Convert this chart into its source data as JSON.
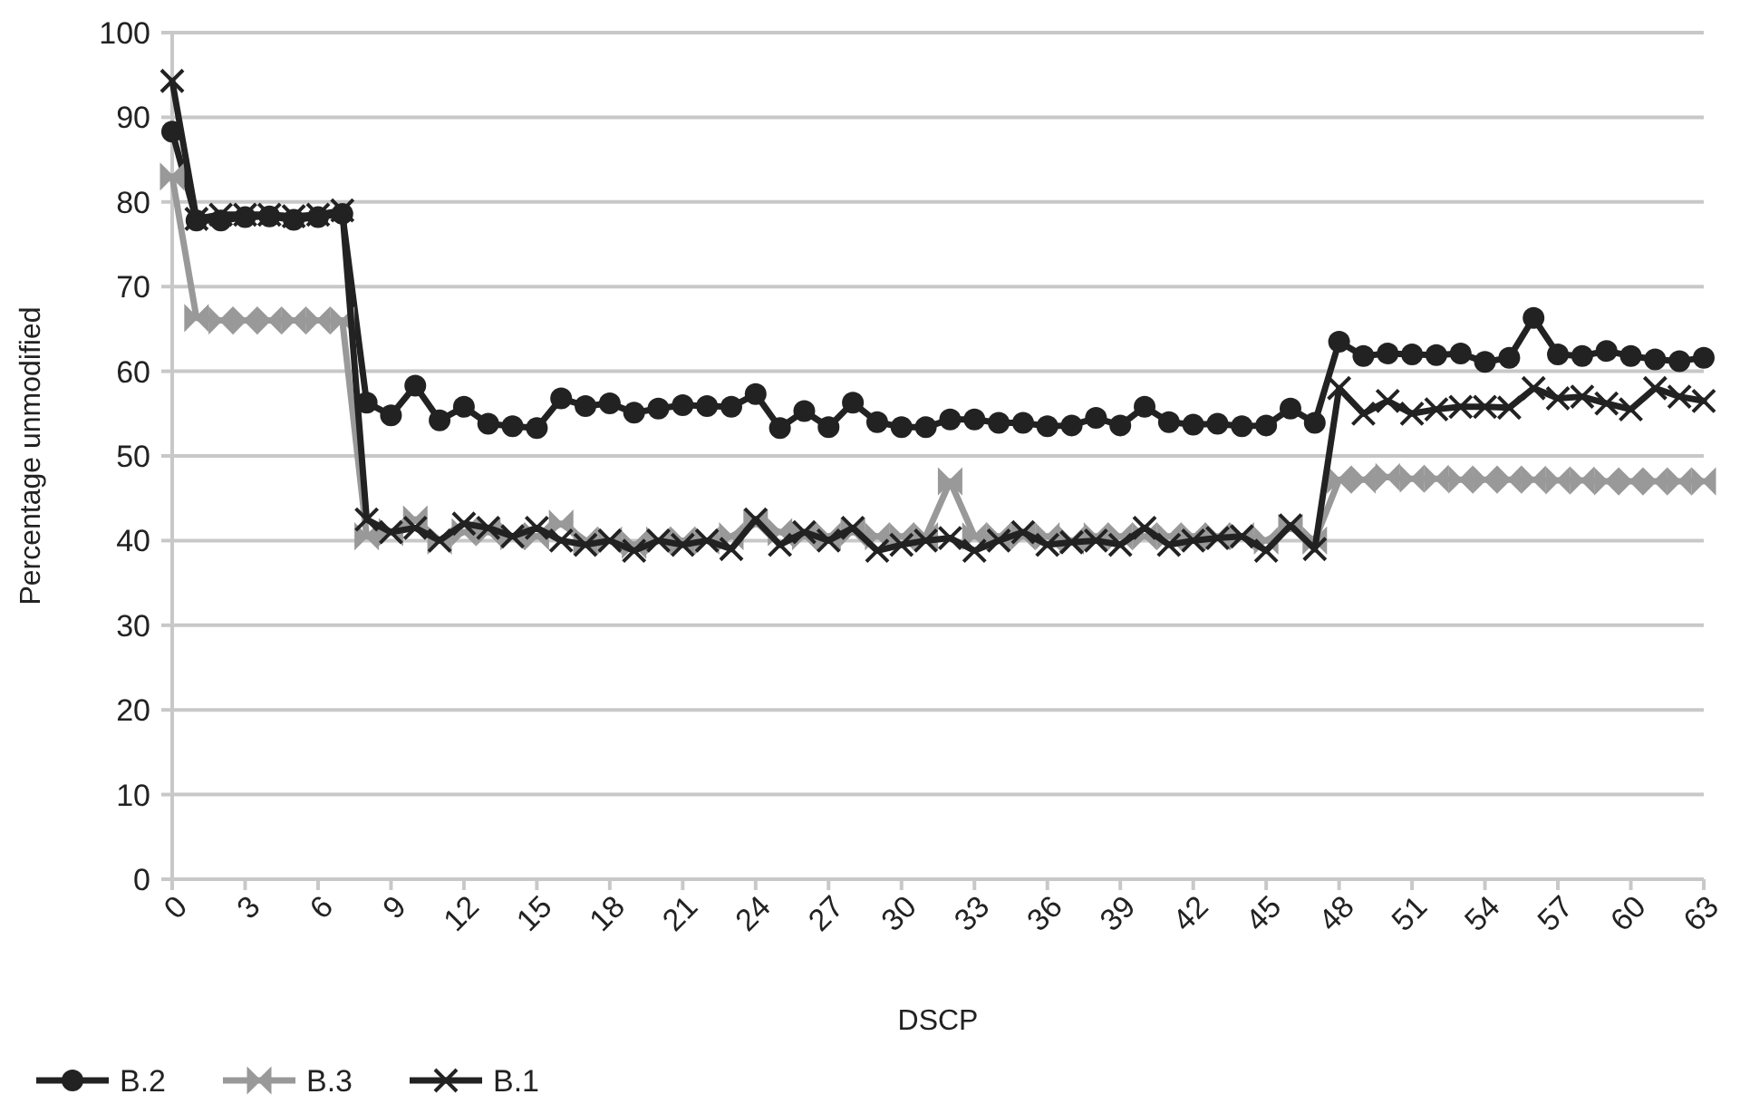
{
  "chart_data": {
    "type": "line",
    "xlabel": "DSCP",
    "ylabel": "Percentage unmodified",
    "x": [
      0,
      1,
      2,
      3,
      4,
      5,
      6,
      7,
      8,
      9,
      10,
      11,
      12,
      13,
      14,
      15,
      16,
      17,
      18,
      19,
      20,
      21,
      22,
      23,
      24,
      25,
      26,
      27,
      28,
      29,
      30,
      31,
      32,
      33,
      34,
      35,
      36,
      37,
      38,
      39,
      40,
      41,
      42,
      43,
      44,
      45,
      46,
      47,
      48,
      49,
      50,
      51,
      52,
      53,
      54,
      55,
      56,
      57,
      58,
      59,
      60,
      61,
      62,
      63
    ],
    "xlim": [
      0,
      63
    ],
    "xticks": [
      0,
      3,
      6,
      9,
      12,
      15,
      18,
      21,
      24,
      27,
      30,
      33,
      36,
      39,
      42,
      45,
      48,
      51,
      54,
      57,
      60,
      63
    ],
    "ylim": [
      0,
      100
    ],
    "yticks": [
      0,
      10,
      20,
      30,
      40,
      50,
      60,
      70,
      80,
      90,
      100
    ],
    "grid": "y",
    "legend": "bottom left",
    "line_style": "solid",
    "series": [
      {
        "name": "B.2",
        "color": "#222222",
        "marker": "circle",
        "values": [
          88.3,
          77.8,
          77.8,
          78.2,
          78.3,
          77.9,
          78.2,
          78.6,
          56.3,
          54.8,
          58.3,
          54.2,
          55.8,
          53.8,
          53.5,
          53.3,
          56.8,
          55.9,
          56.2,
          55.1,
          55.6,
          56.0,
          55.9,
          55.8,
          57.3,
          53.3,
          55.3,
          53.4,
          56.3,
          54.0,
          53.4,
          53.4,
          54.3,
          54.3,
          53.9,
          53.9,
          53.5,
          53.6,
          54.5,
          53.6,
          55.8,
          54.0,
          53.7,
          53.8,
          53.5,
          53.6,
          55.6,
          53.9,
          63.5,
          61.8,
          62.1,
          62.0,
          61.9,
          62.1,
          61.1,
          61.6,
          66.3,
          62.0,
          61.8,
          62.4,
          61.8,
          61.4,
          61.2,
          61.6
        ]
      },
      {
        "name": "B.3",
        "color": "#999999",
        "marker": "triangle",
        "values": [
          83,
          66.3,
          66,
          66,
          66,
          66,
          66,
          66,
          40.5,
          41,
          42.5,
          40,
          41,
          41,
          40.5,
          40.5,
          42,
          40,
          40,
          39.5,
          40,
          40,
          40,
          40.5,
          42,
          41,
          40.5,
          40.5,
          41,
          40.5,
          40.5,
          40.5,
          47,
          40.5,
          40.5,
          40.5,
          40.5,
          40,
          40.5,
          40.5,
          40.5,
          40.5,
          40.5,
          40.5,
          40.5,
          40,
          41.5,
          40,
          47.2,
          47.2,
          47.5,
          47.3,
          47.3,
          47.2,
          47.2,
          47.2,
          47.2,
          47.1,
          47.1,
          47,
          47,
          47,
          47,
          47
        ]
      },
      {
        "name": "B.1",
        "color": "#222222",
        "marker": "cross",
        "values": [
          94.3,
          78,
          78.5,
          78.5,
          78.5,
          78.3,
          78.5,
          79,
          42.5,
          41,
          41.5,
          40,
          42,
          41.5,
          40.5,
          41.5,
          40,
          39.5,
          40,
          38.8,
          40,
          39.5,
          40,
          39,
          42.5,
          39.5,
          41,
          40,
          41.5,
          38.8,
          39.5,
          40,
          40.3,
          38.8,
          40,
          41,
          39.5,
          39.8,
          40,
          39.5,
          41.5,
          39.5,
          40,
          40.3,
          40.5,
          38.8,
          41.8,
          39,
          58,
          55,
          56.5,
          55,
          55.5,
          55.8,
          55.8,
          55.7,
          58,
          56.8,
          57,
          56.2,
          55.5,
          58,
          57,
          56.5
        ]
      }
    ]
  }
}
